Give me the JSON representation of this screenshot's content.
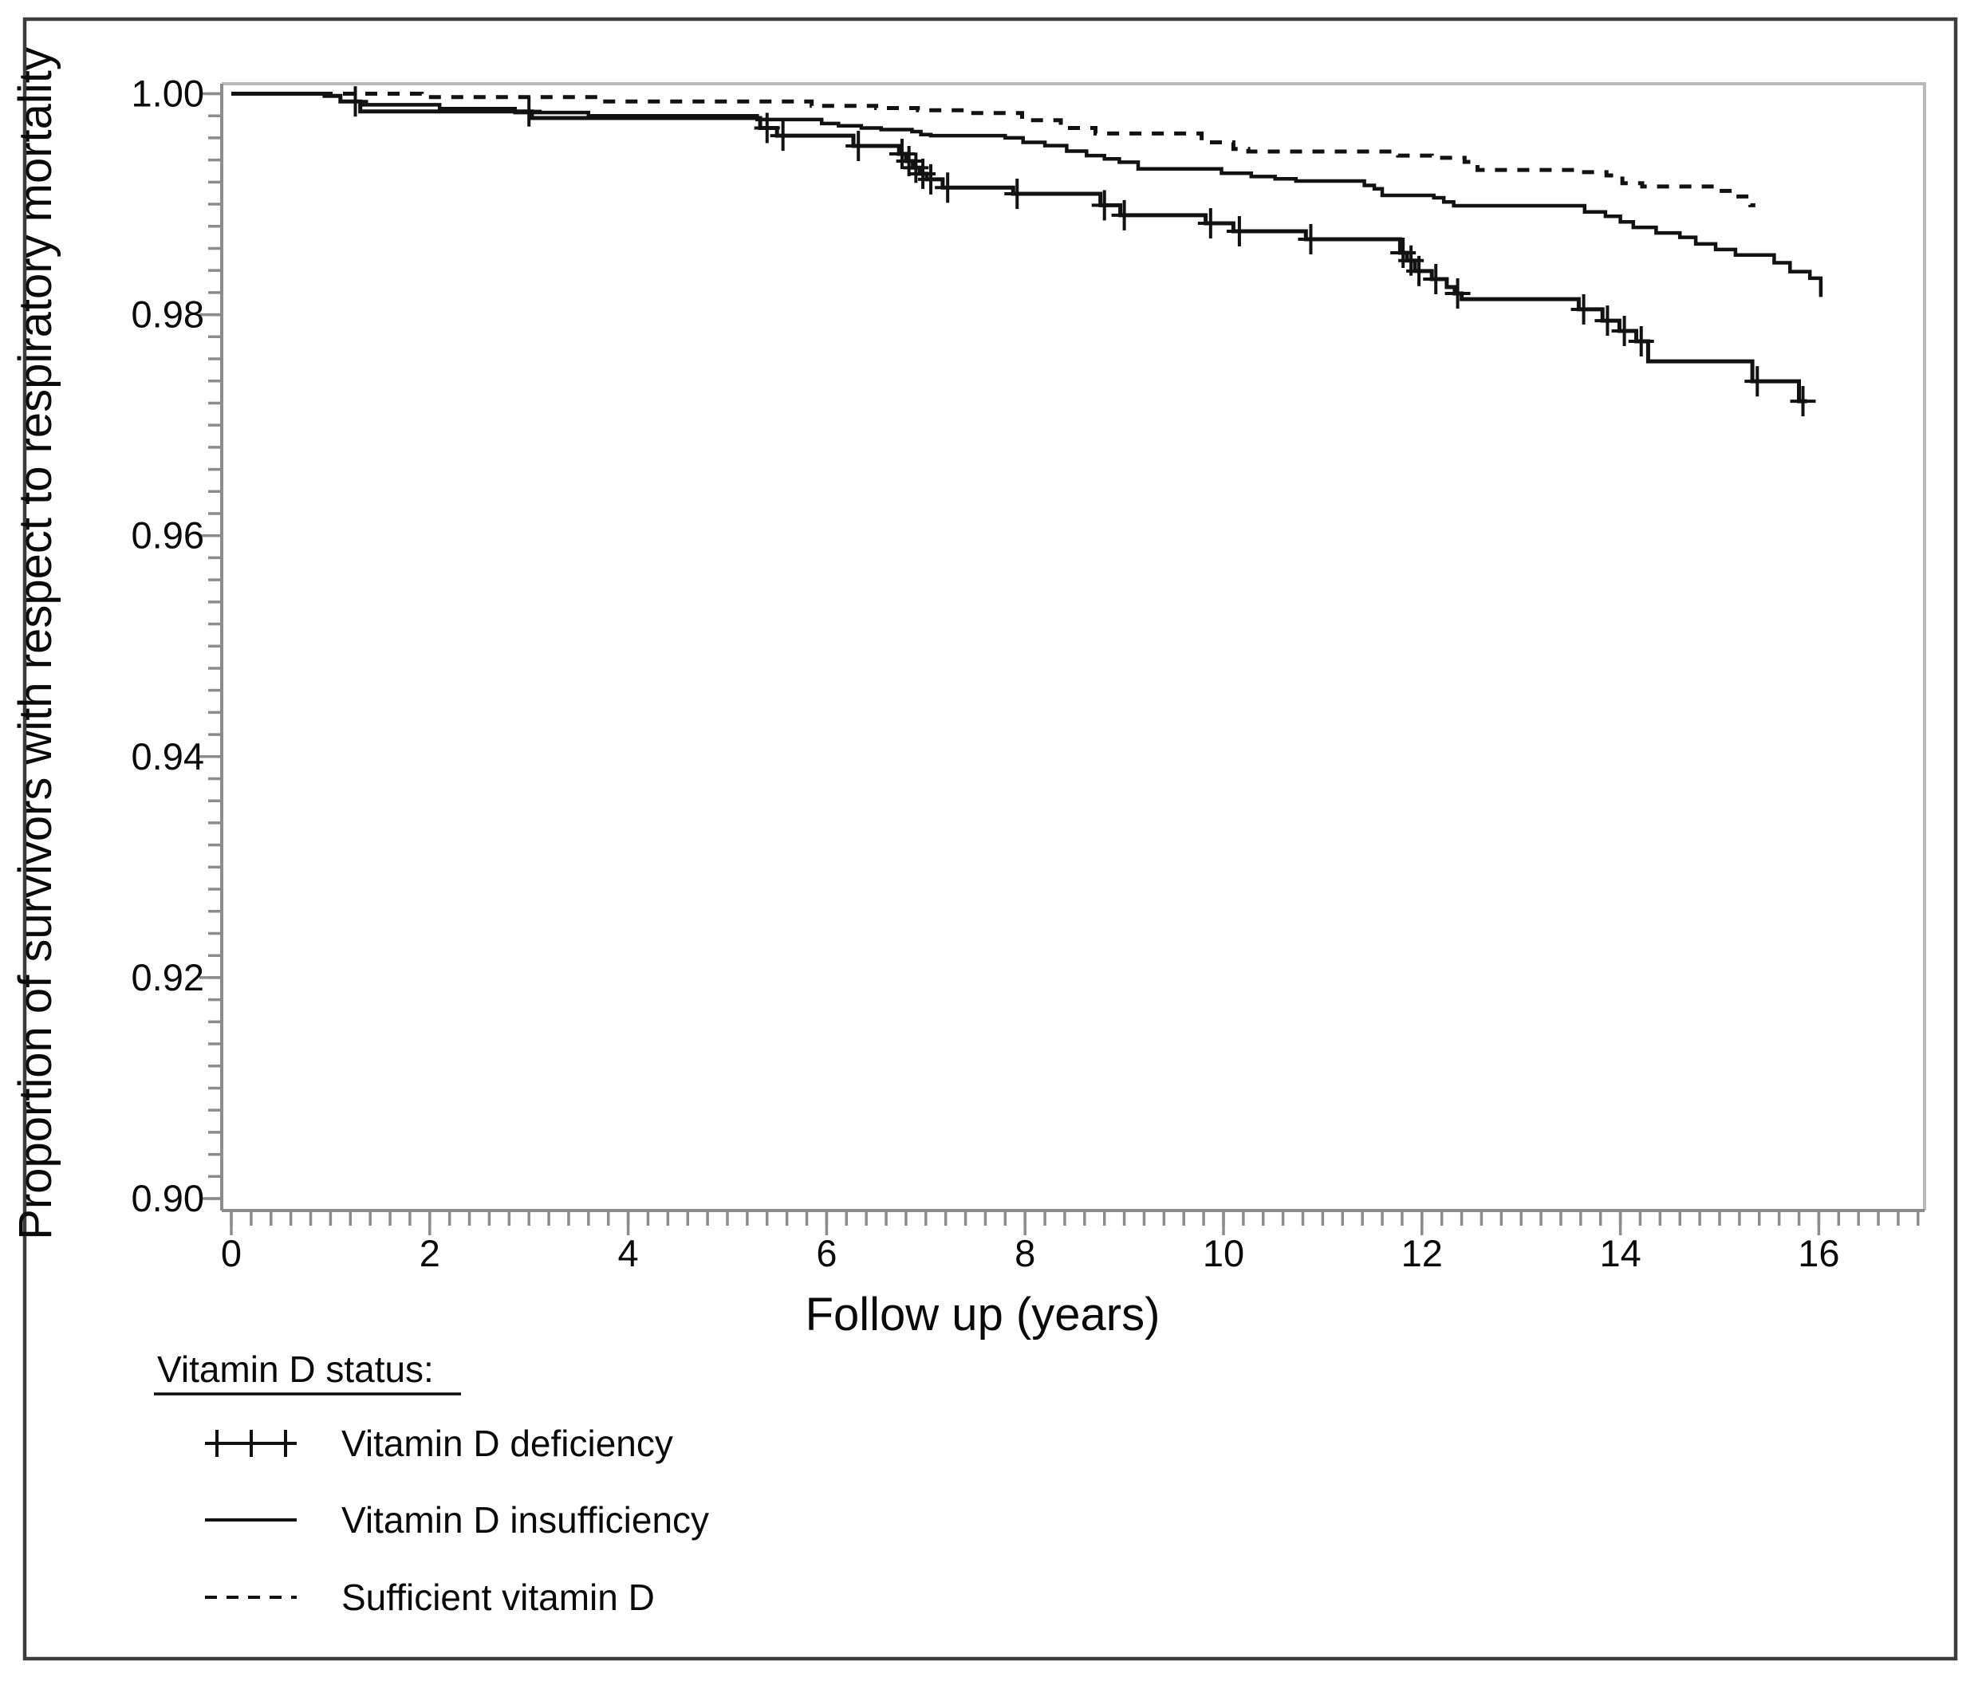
{
  "figure": {
    "x_axis": {
      "title": "Follow up (years)",
      "major_ticks": [
        {
          "v": 0,
          "label": "0"
        },
        {
          "v": 2,
          "label": "2"
        },
        {
          "v": 4,
          "label": "4"
        },
        {
          "v": 6,
          "label": "6"
        },
        {
          "v": 8,
          "label": "8"
        },
        {
          "v": 10,
          "label": "10"
        },
        {
          "v": 12,
          "label": "12"
        },
        {
          "v": 14,
          "label": "14"
        },
        {
          "v": 16,
          "label": "16"
        }
      ],
      "minor": {
        "from": 0,
        "to": 17,
        "step": 0.2
      }
    },
    "y_axis": {
      "title": "Proportion of survivors with respect to respiratory mortality",
      "major_ticks": [
        {
          "v": 1.0,
          "label": "1.00"
        },
        {
          "v": 0.98,
          "label": "0.98"
        },
        {
          "v": 0.96,
          "label": "0.96"
        },
        {
          "v": 0.94,
          "label": "0.94"
        },
        {
          "v": 0.92,
          "label": "0.92"
        },
        {
          "v": 0.9,
          "label": "0.90"
        }
      ],
      "minor": {
        "from": 0.9,
        "to": 1.0,
        "step": 0.002
      }
    },
    "legend": {
      "title": "Vitamin D status:",
      "items": [
        {
          "label": "Vitamin D deficiency",
          "symbol": "plus-line-icon"
        },
        {
          "label": "Vitamin D insufficiency",
          "symbol": "solid-line-icon"
        },
        {
          "label": "Sufficient vitamin D",
          "symbol": "dashed-line-icon"
        }
      ]
    },
    "colors": {
      "curve": "#121212",
      "axis": "#8c8c8c",
      "frame": "#3d3d3d",
      "background": "#ffffff"
    }
  },
  "chart_data": {
    "type": "line",
    "subtype": "kaplan-meier-step",
    "title": "",
    "xlabel": "Follow up (years)",
    "ylabel": "Proportion of survivors with respect to respiratory mortality",
    "xlim": [
      0,
      17.07
    ],
    "ylim": [
      0.898,
      1.001
    ],
    "grid": false,
    "legend_position": "below-left",
    "series": [
      {
        "name": "Vitamin D deficiency",
        "style": "solid-with-censor-marks",
        "points": [
          [
            0,
            1.0
          ],
          [
            0.94,
            0.9998
          ],
          [
            1.1,
            0.9993
          ],
          [
            1.3,
            0.9984
          ],
          [
            3.03,
            0.9978
          ],
          [
            5.33,
            0.9969
          ],
          [
            5.5,
            0.9962
          ],
          [
            6.27,
            0.99527
          ],
          [
            6.73,
            0.99455
          ],
          [
            6.8,
            0.9939
          ],
          [
            6.87,
            0.9933
          ],
          [
            6.94,
            0.99275
          ],
          [
            7.01,
            0.99225
          ],
          [
            7.17,
            0.9915
          ],
          [
            7.88,
            0.99094
          ],
          [
            8.76,
            0.9899
          ],
          [
            8.96,
            0.989
          ],
          [
            9.82,
            0.98827
          ],
          [
            10.1,
            0.98755
          ],
          [
            10.83,
            0.98683
          ],
          [
            11.78,
            0.9856
          ],
          [
            11.85,
            0.9849
          ],
          [
            11.93,
            0.98395
          ],
          [
            12.1,
            0.98322
          ],
          [
            12.25,
            0.9825
          ],
          [
            12.33,
            0.98192
          ],
          [
            12.4,
            0.98141
          ],
          [
            13.58,
            0.98048
          ],
          [
            13.82,
            0.97946
          ],
          [
            13.99,
            0.97853
          ],
          [
            14.16,
            0.97759
          ],
          [
            14.28,
            0.97578
          ],
          [
            15.33,
            0.97397
          ],
          [
            15.8,
            0.97217
          ],
          [
            15.88,
            0.97217
          ]
        ],
        "censors": [
          [
            1.25,
            0.9993
          ],
          [
            3.0,
            0.9984
          ],
          [
            5.4,
            0.9969
          ],
          [
            5.56,
            0.9962
          ],
          [
            6.32,
            0.99527
          ],
          [
            6.76,
            0.99455
          ],
          [
            6.83,
            0.9939
          ],
          [
            6.9,
            0.9933
          ],
          [
            6.97,
            0.99275
          ],
          [
            7.05,
            0.99225
          ],
          [
            7.22,
            0.9915
          ],
          [
            7.92,
            0.99094
          ],
          [
            8.8,
            0.9899
          ],
          [
            9.0,
            0.989
          ],
          [
            9.87,
            0.98827
          ],
          [
            10.16,
            0.98755
          ],
          [
            10.88,
            0.98683
          ],
          [
            11.81,
            0.9856
          ],
          [
            11.89,
            0.9849
          ],
          [
            11.97,
            0.98395
          ],
          [
            12.14,
            0.98322
          ],
          [
            12.36,
            0.98192
          ],
          [
            13.63,
            0.98048
          ],
          [
            13.87,
            0.97946
          ],
          [
            14.04,
            0.97853
          ],
          [
            14.21,
            0.97759
          ],
          [
            15.38,
            0.97397
          ],
          [
            15.84,
            0.97217
          ]
        ]
      },
      {
        "name": "Vitamin D insufficiency",
        "style": "solid",
        "points": [
          [
            0,
            1.0
          ],
          [
            0.94,
            0.9998
          ],
          [
            1.1,
            0.9993
          ],
          [
            1.3,
            0.999
          ],
          [
            2.1,
            0.99865
          ],
          [
            2.86,
            0.9983
          ],
          [
            3.6,
            0.998
          ],
          [
            5.3,
            0.99766
          ],
          [
            5.95,
            0.9973
          ],
          [
            6.12,
            0.9971
          ],
          [
            6.35,
            0.9969
          ],
          [
            6.55,
            0.99675
          ],
          [
            6.86,
            0.99657
          ],
          [
            6.95,
            0.9963
          ],
          [
            7.05,
            0.9962
          ],
          [
            7.8,
            0.996
          ],
          [
            7.98,
            0.9956
          ],
          [
            8.2,
            0.9953
          ],
          [
            8.42,
            0.9948
          ],
          [
            8.62,
            0.9944
          ],
          [
            8.8,
            0.9941
          ],
          [
            8.95,
            0.9938
          ],
          [
            9.14,
            0.9932
          ],
          [
            9.98,
            0.9928
          ],
          [
            10.28,
            0.9925
          ],
          [
            10.52,
            0.9923
          ],
          [
            10.73,
            0.9921
          ],
          [
            11.42,
            0.9917
          ],
          [
            11.52,
            0.9914
          ],
          [
            11.6,
            0.9908
          ],
          [
            12.12,
            0.99058
          ],
          [
            12.22,
            0.9902
          ],
          [
            12.32,
            0.98986
          ],
          [
            13.64,
            0.9893
          ],
          [
            13.85,
            0.9889
          ],
          [
            14.0,
            0.9884
          ],
          [
            14.13,
            0.9879
          ],
          [
            14.36,
            0.9874
          ],
          [
            14.6,
            0.987
          ],
          [
            14.76,
            0.9864
          ],
          [
            14.96,
            0.9859
          ],
          [
            15.16,
            0.9854
          ],
          [
            15.55,
            0.9847
          ],
          [
            15.71,
            0.9839
          ],
          [
            15.91,
            0.9833
          ],
          [
            16.02,
            0.9816
          ]
        ],
        "censors": []
      },
      {
        "name": "Sufficient vitamin D",
        "style": "dashed",
        "points": [
          [
            0,
            1.0
          ],
          [
            1.92,
            0.9997
          ],
          [
            3.7,
            0.9993
          ],
          [
            5.85,
            0.9989
          ],
          [
            6.5,
            0.9987
          ],
          [
            6.92,
            0.9985
          ],
          [
            7.42,
            0.99825
          ],
          [
            7.97,
            0.9976
          ],
          [
            8.36,
            0.9969
          ],
          [
            8.71,
            0.9964
          ],
          [
            9.78,
            0.9956
          ],
          [
            10.1,
            0.995
          ],
          [
            10.25,
            0.99477
          ],
          [
            11.76,
            0.9944
          ],
          [
            12.1,
            0.9942
          ],
          [
            12.43,
            0.99383
          ],
          [
            12.56,
            0.9931
          ],
          [
            13.6,
            0.9929
          ],
          [
            13.86,
            0.9926
          ],
          [
            14.02,
            0.9919
          ],
          [
            14.22,
            0.9916
          ],
          [
            14.96,
            0.9912
          ],
          [
            15.15,
            0.9907
          ],
          [
            15.31,
            0.9899
          ],
          [
            15.36,
            0.9899
          ]
        ],
        "censors": []
      }
    ]
  }
}
